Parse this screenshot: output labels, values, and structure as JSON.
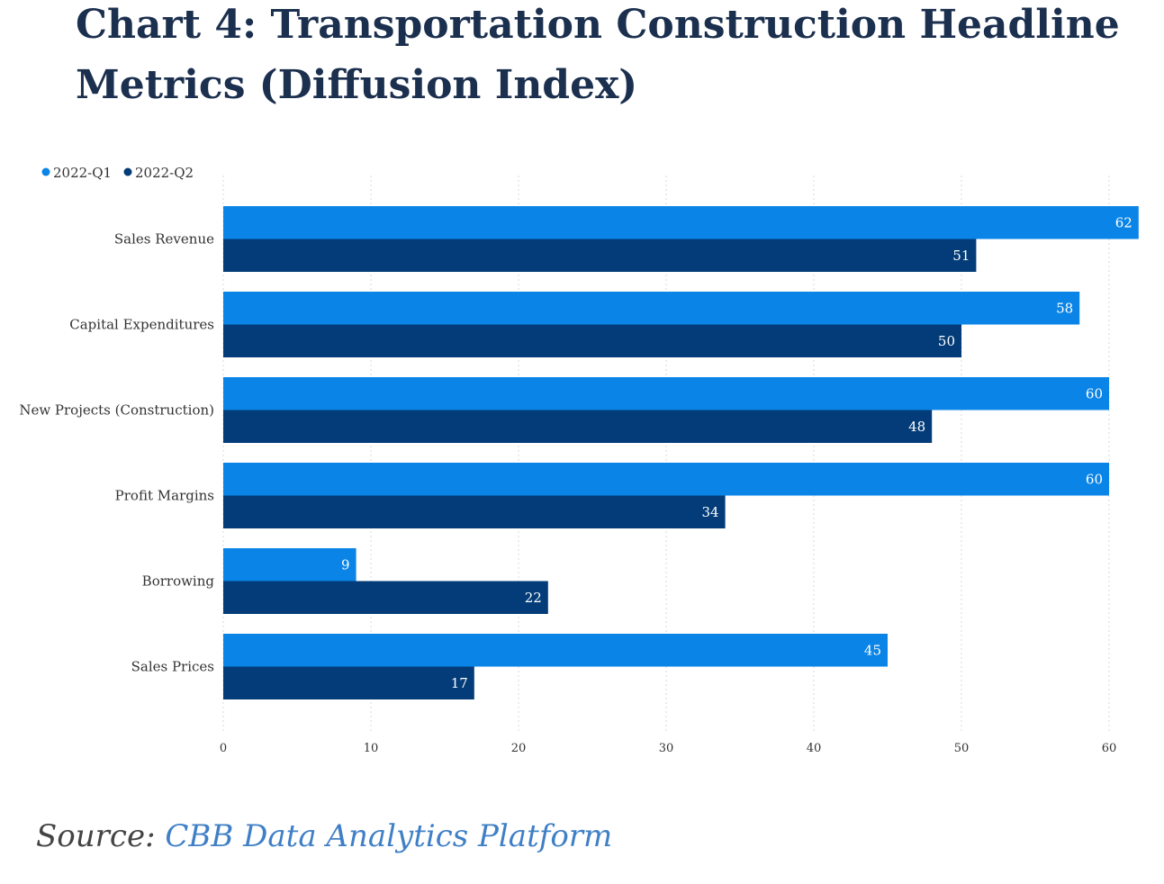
{
  "title": "Chart 4: Transportation Construction Headline Metrics (Diffusion Index)",
  "source": {
    "prefix": "Source: ",
    "link_text": "CBB Data Analytics Platform"
  },
  "colors": {
    "q1": "#0a84e6",
    "q2": "#033c78",
    "grid": "#d8d8d8"
  },
  "chart_data": {
    "type": "bar",
    "orientation": "horizontal",
    "title": "Chart 4: Transportation Construction Headline Metrics (Diffusion Index)",
    "categories": [
      "Sales Revenue",
      "Capital Expenditures",
      "New Projects (Construction)",
      "Profit Margins",
      "Borrowing",
      "Sales Prices"
    ],
    "series": [
      {
        "name": "2022-Q1",
        "values": [
          62,
          58,
          60,
          60,
          9,
          45
        ]
      },
      {
        "name": "2022-Q2",
        "values": [
          51,
          50,
          48,
          34,
          22,
          17
        ]
      }
    ],
    "xlim": [
      0,
      62
    ],
    "xticks": [
      0,
      10,
      20,
      30,
      40,
      50,
      60
    ],
    "grid": true,
    "legend": "top-left"
  }
}
